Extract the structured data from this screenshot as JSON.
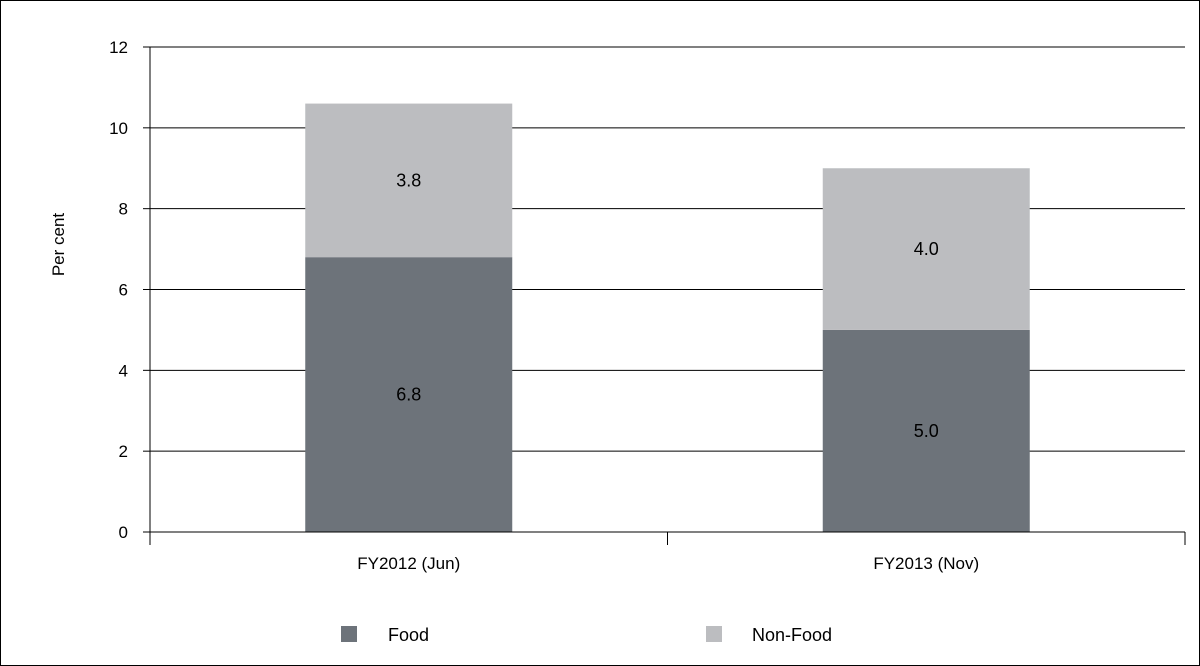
{
  "chart_data": {
    "type": "bar",
    "stacked": true,
    "title": "",
    "xlabel": "",
    "ylabel": "Per cent",
    "ylim": [
      0,
      12
    ],
    "yticks": [
      0,
      2,
      4,
      6,
      8,
      10,
      12
    ],
    "categories": [
      "FY2012 (Jun)",
      "FY2013 (Nov)"
    ],
    "series": [
      {
        "name": "Food",
        "values": [
          6.8,
          5.0
        ],
        "color": "#6d737a"
      },
      {
        "name": "Non-Food",
        "values": [
          3.8,
          4.0
        ],
        "color": "#bcbdc0"
      }
    ],
    "grid": true,
    "legend_position": "bottom"
  }
}
